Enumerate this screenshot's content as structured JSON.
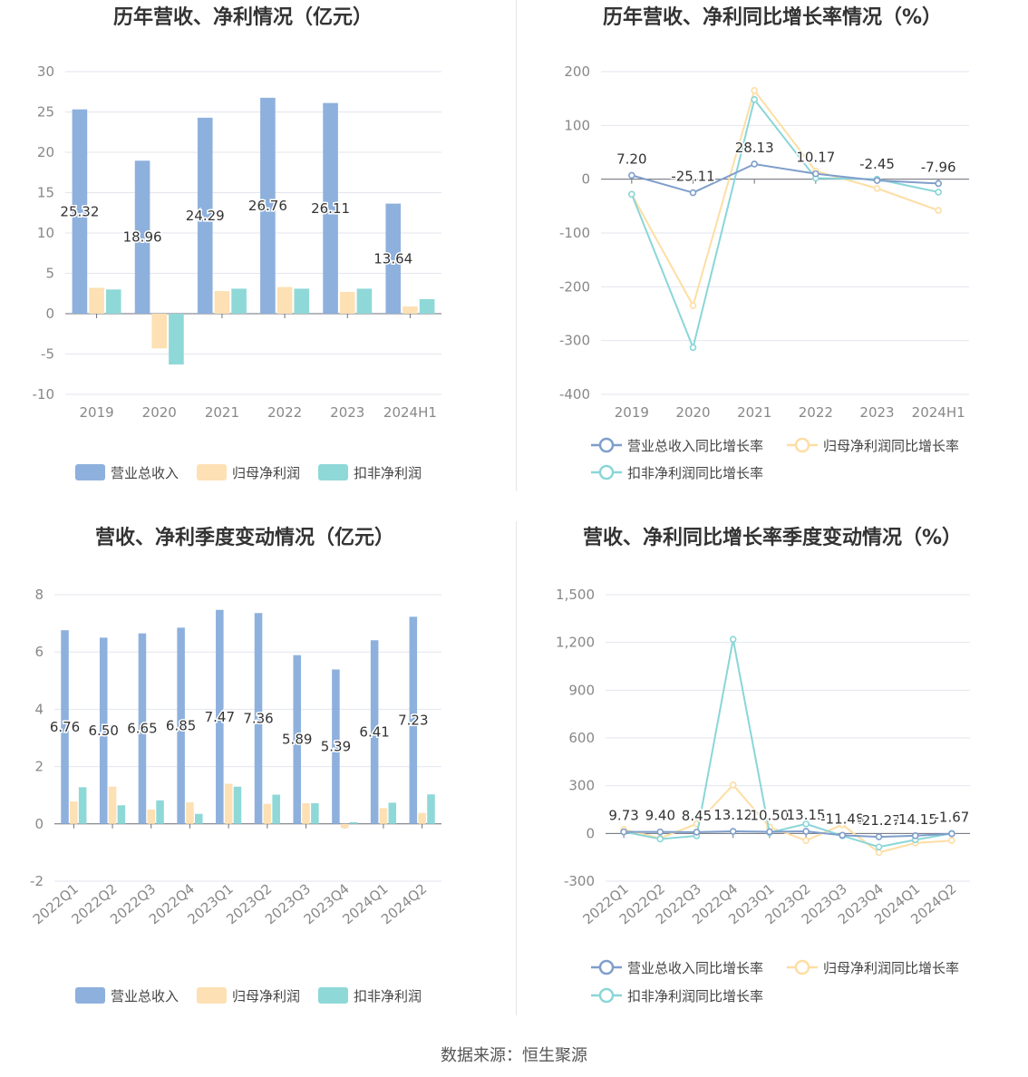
{
  "source": "数据来源：恒生聚源",
  "chart_data": [
    {
      "id": "annual_bar",
      "type": "bar",
      "title": "历年营收、净利情况（亿元）",
      "categories": [
        "2019",
        "2020",
        "2021",
        "2022",
        "2023",
        "2024H1"
      ],
      "ylim": [
        -10,
        30
      ],
      "yticks": [
        "-10",
        "-5",
        "0",
        "5",
        "10",
        "15",
        "20",
        "25",
        "30"
      ],
      "grid": true,
      "legend_position": "bottom",
      "series": [
        {
          "name": "营业总收入",
          "color": "#8eb0dd",
          "values": [
            25.32,
            18.96,
            24.29,
            26.76,
            26.11,
            13.64
          ],
          "labels": [
            "25.32",
            "18.96",
            "24.29",
            "26.76",
            "26.11",
            "13.64"
          ]
        },
        {
          "name": "归母净利润",
          "color": "#fde0b4",
          "values": [
            3.2,
            -4.3,
            2.8,
            3.3,
            2.7,
            0.9
          ]
        },
        {
          "name": "扣非净利润",
          "color": "#8fd8d8",
          "values": [
            3.0,
            -6.3,
            3.1,
            3.1,
            3.1,
            1.8
          ]
        }
      ]
    },
    {
      "id": "annual_line",
      "type": "line",
      "title": "历年营收、净利同比增长率情况（%）",
      "categories": [
        "2019",
        "2020",
        "2021",
        "2022",
        "2023",
        "2024H1"
      ],
      "ylim": [
        -400,
        200
      ],
      "yticks": [
        "-400",
        "-300",
        "-200",
        "-100",
        "0",
        "100",
        "200"
      ],
      "grid": true,
      "legend_position": "bottom",
      "series": [
        {
          "name": "营业总收入同比增长率",
          "color": "#7f9ecb",
          "values": [
            7.2,
            -25.11,
            28.13,
            10.17,
            -2.45,
            -7.96
          ],
          "labels": [
            "7.20",
            "-25.11",
            "28.13",
            "10.17",
            "-2.45",
            "-7.96"
          ]
        },
        {
          "name": "归母净利润同比增长率",
          "color": "#fddea4",
          "values": [
            -28,
            -235,
            165,
            15,
            -17,
            -58
          ]
        },
        {
          "name": "扣非净利润同比增长率",
          "color": "#8ad6d8",
          "values": [
            -28,
            -313,
            148,
            2,
            0,
            -24
          ]
        }
      ]
    },
    {
      "id": "quarterly_bar",
      "type": "bar",
      "title": "营收、净利季度变动情况（亿元）",
      "categories": [
        "2022Q1",
        "2022Q2",
        "2022Q3",
        "2022Q4",
        "2023Q1",
        "2023Q2",
        "2023Q3",
        "2023Q4",
        "2024Q1",
        "2024Q2"
      ],
      "ylim": [
        -2,
        8
      ],
      "yticks": [
        "-2",
        "0",
        "2",
        "4",
        "6",
        "8"
      ],
      "grid": true,
      "legend_position": "bottom",
      "series": [
        {
          "name": "营业总收入",
          "color": "#8eb0dd",
          "values": [
            6.76,
            6.5,
            6.65,
            6.85,
            7.47,
            7.36,
            5.89,
            5.39,
            6.41,
            7.23
          ],
          "labels": [
            "6.76",
            "6.50",
            "6.65",
            "6.85",
            "7.47",
            "7.36",
            "5.89",
            "5.39",
            "6.41",
            "7.23"
          ]
        },
        {
          "name": "归母净利润",
          "color": "#fde0b4",
          "values": [
            0.78,
            1.3,
            0.5,
            0.75,
            1.4,
            0.7,
            0.72,
            -0.15,
            0.55,
            0.38
          ]
        },
        {
          "name": "扣非净利润",
          "color": "#8fd8d8",
          "values": [
            1.28,
            0.65,
            0.82,
            0.35,
            1.3,
            1.02,
            0.72,
            0.06,
            0.74,
            1.03
          ]
        }
      ]
    },
    {
      "id": "quarterly_line",
      "type": "line",
      "title": "营收、净利同比增长率季度变动情况（%）",
      "categories": [
        "2022Q1",
        "2022Q2",
        "2022Q3",
        "2022Q4",
        "2023Q1",
        "2023Q2",
        "2023Q3",
        "2023Q4",
        "2024Q1",
        "2024Q2"
      ],
      "ylim": [
        -300,
        1500
      ],
      "yticks": [
        "-300",
        "0",
        "300",
        "600",
        "900",
        "1,200",
        "1,500"
      ],
      "grid": true,
      "legend_position": "bottom",
      "series": [
        {
          "name": "营业总收入同比增长率",
          "color": "#7f9ecb",
          "values": [
            9.73,
            9.4,
            8.45,
            13.12,
            10.5,
            13.15,
            -11.48,
            -21.27,
            -14.15,
            -1.67
          ],
          "labels": [
            "9.73",
            "9.40",
            "8.45",
            "13.12",
            "10.50",
            "13.15",
            "-11.48",
            "-21.27",
            "-14.15",
            "-1.67"
          ]
        },
        {
          "name": "归母净利润同比增长率",
          "color": "#fddea4",
          "values": [
            25,
            -30,
            60,
            305,
            40,
            -45,
            55,
            -120,
            -60,
            -45
          ]
        },
        {
          "name": "扣非净利润同比增长率",
          "color": "#8ad6d8",
          "values": [
            10,
            -35,
            -15,
            1220,
            5,
            60,
            -15,
            -85,
            -40,
            0
          ]
        }
      ]
    }
  ]
}
